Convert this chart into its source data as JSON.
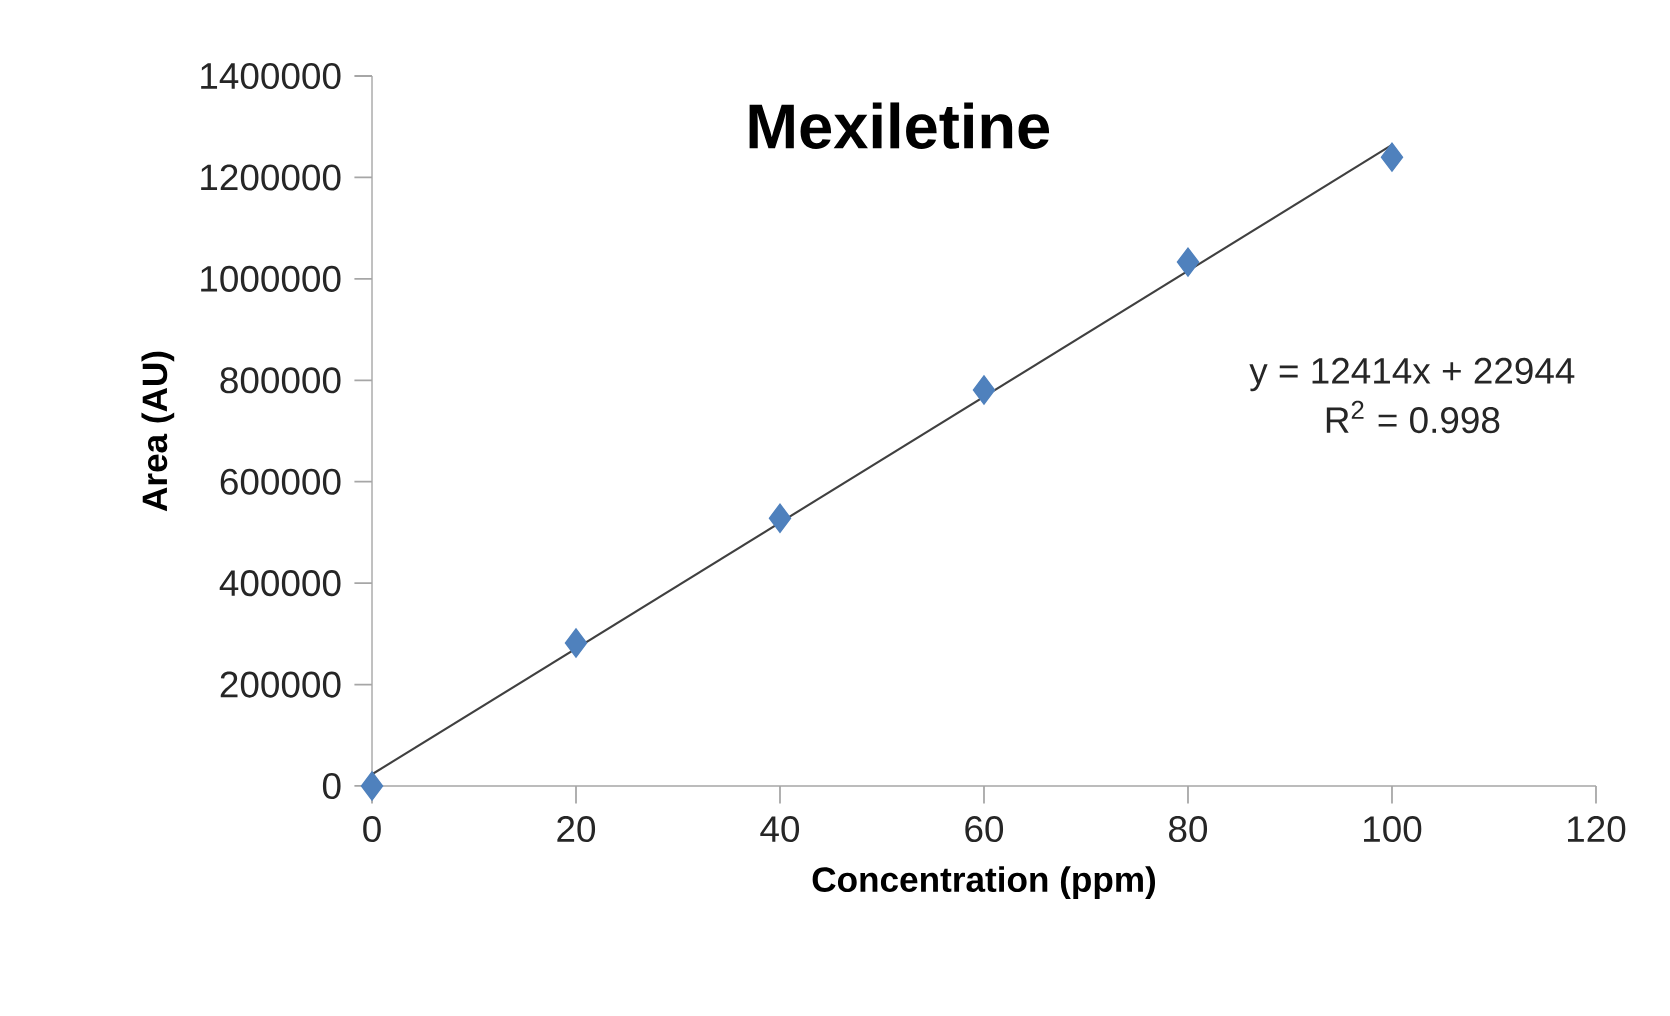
{
  "chart_data": {
    "type": "scatter",
    "title": "Mexiletine",
    "xlabel": "Concentration (ppm)",
    "ylabel": "Area (AU)",
    "xlim": [
      0,
      120
    ],
    "xticks": [
      0,
      20,
      40,
      60,
      80,
      100,
      120
    ],
    "ylim": [
      0,
      1400000
    ],
    "yticks": [
      0,
      200000,
      400000,
      600000,
      800000,
      1000000,
      1200000,
      1400000
    ],
    "grid": false,
    "series": [
      {
        "marker": "diamond",
        "color": "#4f81bd",
        "x": [
          0,
          20,
          40,
          60,
          80,
          100
        ],
        "values": [
          0,
          282000,
          528000,
          781000,
          1033000,
          1240000
        ]
      },
      {
        "type": "line",
        "marker": "none",
        "color": "#404040",
        "x": [
          0,
          100
        ],
        "values": [
          23000,
          1264000
        ]
      }
    ],
    "annotations": [
      "y = 12414x + 22944",
      "R$^{2}$ = 0.998"
    ]
  }
}
